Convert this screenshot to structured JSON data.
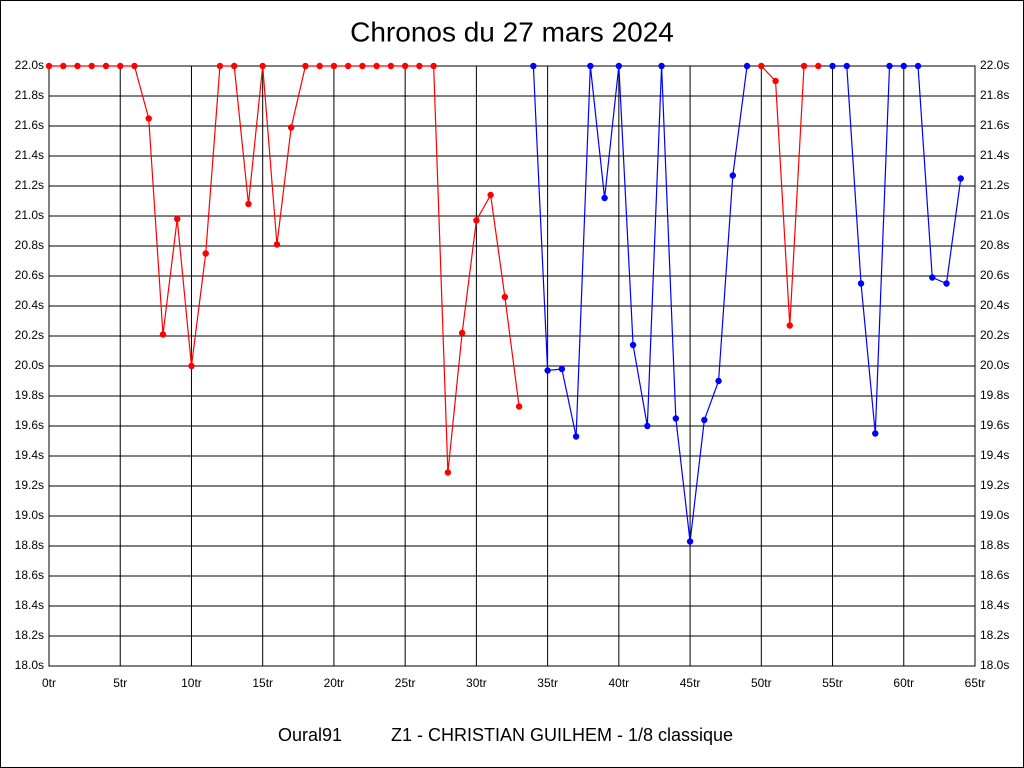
{
  "chart_data": {
    "type": "line",
    "title": "Chronos du 27 mars 2024",
    "footer": [
      "Oural91",
      "Z1 - CHRISTIAN GUILHEM - 1/8 classique"
    ],
    "x": [
      0,
      1,
      2,
      3,
      4,
      5,
      6,
      7,
      8,
      9,
      10,
      11,
      12,
      13,
      14,
      15,
      16,
      17,
      18,
      19,
      20,
      21,
      22,
      23,
      24,
      25,
      26,
      27,
      28,
      29,
      30,
      31,
      32,
      33,
      34,
      35,
      36,
      37,
      38,
      39,
      40,
      41,
      42,
      43,
      44,
      45,
      46,
      47,
      48,
      49,
      50,
      51,
      52,
      53,
      54,
      55,
      56,
      57,
      58,
      59,
      60,
      61,
      62,
      63,
      64
    ],
    "series": [
      {
        "name": "red",
        "color": "#ff0000",
        "values": [
          22,
          22,
          22,
          22,
          22,
          22,
          22,
          21.65,
          20.21,
          20.98,
          20.0,
          20.75,
          22,
          22,
          21.08,
          22,
          20.81,
          21.59,
          22,
          22,
          22,
          22,
          22,
          22,
          22,
          22,
          22,
          22,
          19.29,
          20.22,
          20.97,
          21.14,
          20.46,
          19.73,
          null,
          null,
          null,
          null,
          null,
          null,
          null,
          null,
          null,
          null,
          null,
          null,
          null,
          null,
          null,
          null,
          22,
          21.9,
          20.27,
          22,
          22,
          null,
          null,
          null,
          null,
          null,
          null,
          null,
          null,
          null,
          null
        ]
      },
      {
        "name": "blue",
        "color": "#0000ff",
        "values": [
          null,
          null,
          null,
          null,
          null,
          null,
          null,
          null,
          null,
          null,
          null,
          null,
          null,
          null,
          null,
          null,
          null,
          null,
          null,
          null,
          null,
          null,
          null,
          null,
          null,
          null,
          null,
          null,
          null,
          null,
          null,
          null,
          null,
          null,
          22,
          19.97,
          19.98,
          19.53,
          22,
          21.12,
          22,
          20.14,
          19.6,
          22,
          19.65,
          18.83,
          19.64,
          19.9,
          21.27,
          22,
          null,
          null,
          null,
          null,
          null,
          22,
          22,
          20.55,
          19.55,
          22,
          22,
          22,
          20.59,
          20.55,
          21.25
        ]
      }
    ],
    "xlim": [
      0,
      65
    ],
    "xticks": [
      {
        "value": 0,
        "label": "0tr"
      },
      {
        "value": 5,
        "label": "5tr"
      },
      {
        "value": 10,
        "label": "10tr"
      },
      {
        "value": 15,
        "label": "15tr"
      },
      {
        "value": 20,
        "label": "20tr"
      },
      {
        "value": 25,
        "label": "25tr"
      },
      {
        "value": 30,
        "label": "30tr"
      },
      {
        "value": 35,
        "label": "35tr"
      },
      {
        "value": 40,
        "label": "40tr"
      },
      {
        "value": 45,
        "label": "45tr"
      },
      {
        "value": 50,
        "label": "50tr"
      },
      {
        "value": 55,
        "label": "55tr"
      },
      {
        "value": 60,
        "label": "60tr"
      },
      {
        "value": 65,
        "label": "65tr"
      }
    ],
    "ylim": [
      18.0,
      22.0
    ],
    "yticks": [
      {
        "value": 18.0,
        "label": "18.0s"
      },
      {
        "value": 18.2,
        "label": "18.2s"
      },
      {
        "value": 18.4,
        "label": "18.4s"
      },
      {
        "value": 18.6,
        "label": "18.6s"
      },
      {
        "value": 18.8,
        "label": "18.8s"
      },
      {
        "value": 19.0,
        "label": "19.0s"
      },
      {
        "value": 19.2,
        "label": "19.2s"
      },
      {
        "value": 19.4,
        "label": "19.4s"
      },
      {
        "value": 19.6,
        "label": "19.6s"
      },
      {
        "value": 19.8,
        "label": "19.8s"
      },
      {
        "value": 20.0,
        "label": "20.0s"
      },
      {
        "value": 20.2,
        "label": "20.2s"
      },
      {
        "value": 20.4,
        "label": "20.4s"
      },
      {
        "value": 20.6,
        "label": "20.6s"
      },
      {
        "value": 20.8,
        "label": "20.8s"
      },
      {
        "value": 21.0,
        "label": "21.0s"
      },
      {
        "value": 21.2,
        "label": "21.2s"
      },
      {
        "value": 21.4,
        "label": "21.4s"
      },
      {
        "value": 21.6,
        "label": "21.6s"
      },
      {
        "value": 21.8,
        "label": "21.8s"
      },
      {
        "value": 22.0,
        "label": "22.0s"
      }
    ],
    "grid": true
  }
}
